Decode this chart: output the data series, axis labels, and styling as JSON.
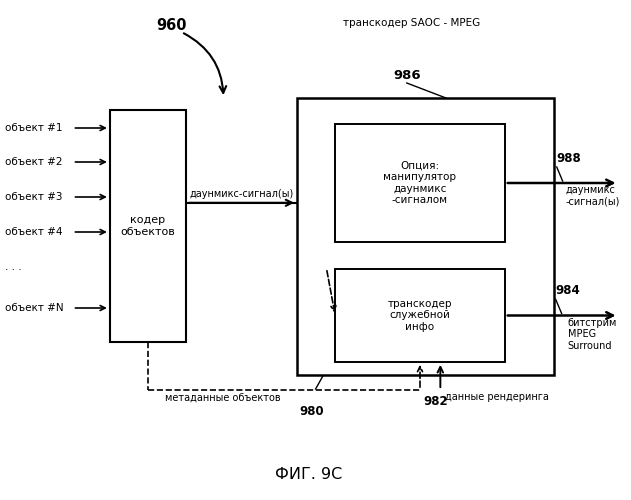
{
  "title": "ФИГ. 9C",
  "background_color": "#ffffff",
  "label_960": "960",
  "label_transcoder_title": "транскодер SAOC - MPEG",
  "label_coder": "кодер\nобъектов",
  "label_downmix_signal": "даунмикс-сигнал(ы)",
  "label_option_box": "Опция:\nманипулятор\nдаунмикс\n-сигналом",
  "label_transcoder_box": "транскодер\nслужебной\nинфо",
  "label_metadata": "метаданные объектов",
  "label_rendering": "данные рендеринга",
  "label_986": "986",
  "label_988": "988",
  "label_984": "984",
  "label_980": "980",
  "label_982": "982",
  "label_downmix_out": "даунмикс\n-сигнал(ы)",
  "label_bitstream": "битстрим\nMPEG\nSurround",
  "objects": [
    "объект #1",
    "объект #2",
    "объект #3",
    "объект #4",
    ". . .",
    "объект #N"
  ]
}
